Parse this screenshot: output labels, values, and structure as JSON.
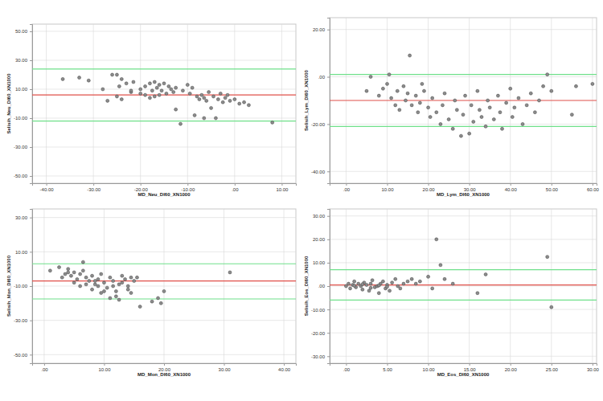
{
  "chart_data": [
    {
      "type": "scatter",
      "x_label": "MD_Neu_DI60_XN1000",
      "y_label": "Selisih_Neu_DI60_XN1000",
      "color": "#8c8c8c",
      "grid": true,
      "xlim": [
        -43,
        13
      ],
      "ylim": [
        -55,
        55
      ],
      "xticks": [
        {
          "value": -40,
          "label": "-40.00"
        },
        {
          "value": -30,
          "label": "-30.00"
        },
        {
          "value": -20,
          "label": "-20.00"
        },
        {
          "value": -10,
          "label": "-10.00"
        },
        {
          "value": 0,
          "label": ".00"
        },
        {
          "value": 10,
          "label": "10.00"
        }
      ],
      "yticks": [
        {
          "value": 50,
          "label": "50.00"
        },
        {
          "value": 30,
          "label": "30.00"
        },
        {
          "value": 10,
          "label": "10.00"
        },
        {
          "value": -10,
          "label": "-10.00"
        },
        {
          "value": -30,
          "label": "-30.00"
        },
        {
          "value": -50,
          "label": "-50.00"
        }
      ],
      "mean_difference": 6,
      "limits_of_agreement": [
        -12,
        24
      ],
      "x": [
        -36.5,
        -33,
        -31,
        -28,
        -26,
        -25,
        -24.5,
        -24,
        -23,
        -22,
        -21.5,
        -27,
        -25,
        -24,
        -20,
        -19,
        -18,
        -17.5,
        -17,
        -16.5,
        -16,
        -15.5,
        -15,
        -14.5,
        -14,
        -13.5,
        -13,
        -12.5,
        -19,
        -18,
        -17,
        -16,
        -11,
        -10,
        -9.5,
        -9,
        -8.5,
        -8,
        -7.5,
        -7,
        -6.5,
        -6,
        -5.5,
        -5,
        -4.5,
        -4,
        -3.5,
        -3,
        -2.5,
        -2,
        -1.5,
        -1,
        0,
        1,
        2,
        3,
        -12.5,
        -11.5,
        -6.5,
        8,
        -20,
        -22
      ],
      "values": [
        17,
        18,
        16,
        10,
        20,
        20,
        12,
        17,
        14,
        8,
        15,
        2,
        5,
        3,
        10,
        12,
        14,
        9,
        15,
        11,
        13,
        9,
        14,
        7,
        12,
        10,
        8,
        11,
        6,
        4,
        5,
        6,
        9,
        13,
        7,
        11,
        -8,
        5,
        3,
        6,
        4,
        2,
        8,
        -3,
        5,
        -10,
        3,
        7,
        1,
        4,
        6,
        2,
        3,
        0,
        1,
        -1,
        -4,
        -14,
        -10,
        -13,
        7,
        9
      ]
    },
    {
      "type": "scatter",
      "x_label": "MD_Lym_DI60_XN1000",
      "y_label": "Selisih_Lym_DI60_XN1000",
      "color": "#8c8c8c",
      "grid": true,
      "xlim": [
        -4,
        61
      ],
      "ylim": [
        -45,
        25
      ],
      "xticks": [
        {
          "value": 0,
          "label": ".00"
        },
        {
          "value": 10,
          "label": "10.00"
        },
        {
          "value": 20,
          "label": "20.00"
        },
        {
          "value": 30,
          "label": "30.00"
        },
        {
          "value": 40,
          "label": "40.00"
        },
        {
          "value": 50,
          "label": "50.00"
        },
        {
          "value": 60,
          "label": "60.00"
        }
      ],
      "yticks": [
        {
          "value": 20,
          "label": "20.00"
        },
        {
          "value": 0,
          "label": ".00"
        },
        {
          "value": -20,
          "label": "-20.00"
        },
        {
          "value": -40,
          "label": "-40.00"
        }
      ],
      "mean_difference": -10,
      "limits_of_agreement": [
        -21,
        1
      ],
      "x": [
        5,
        6,
        8,
        9,
        10,
        10.5,
        11,
        12,
        12.5,
        13,
        14,
        14.5,
        15,
        15.5,
        16,
        17,
        17.5,
        18,
        18.5,
        19,
        20,
        20.5,
        21,
        22,
        23,
        23.5,
        24,
        25,
        26,
        26.5,
        27,
        28,
        28.5,
        29,
        30,
        30.5,
        31,
        32,
        32.5,
        33,
        34,
        34.5,
        35,
        36,
        37,
        37.5,
        38,
        39,
        40,
        40.5,
        41,
        42,
        43,
        44,
        45,
        46,
        47,
        48,
        49,
        50,
        55,
        56,
        60
      ],
      "values": [
        -6,
        0,
        -8,
        -5,
        -3,
        1,
        -9,
        -12,
        -6,
        -14,
        -4,
        -10,
        -7,
        9,
        -12,
        -8,
        -15,
        -11,
        -3,
        -6,
        -13,
        -17,
        -9,
        -15,
        -20,
        -12,
        -7,
        -18,
        -22,
        -10,
        -14,
        -25,
        -16,
        -8,
        -24,
        -12,
        -19,
        -6,
        -14,
        -17,
        -21,
        -10,
        -13,
        -18,
        -8,
        -15,
        -22,
        -11,
        -5,
        -17,
        -13,
        -9,
        -20,
        -12,
        -7,
        -15,
        -10,
        -4,
        1,
        -6,
        -16,
        -4,
        -3
      ]
    },
    {
      "type": "scatter",
      "x_label": "MD_Mon_DI60_XN1000",
      "y_label": "Selisih_Mon_DI60_XN1000",
      "color": "#8c8c8c",
      "grid": true,
      "xlim": [
        -2,
        42
      ],
      "ylim": [
        -55,
        35
      ],
      "xticks": [
        {
          "value": 0,
          "label": ".00"
        },
        {
          "value": 10,
          "label": "10.00"
        },
        {
          "value": 20,
          "label": "20.00"
        },
        {
          "value": 30,
          "label": "30.00"
        },
        {
          "value": 40,
          "label": "40.00"
        }
      ],
      "yticks": [
        {
          "value": 30,
          "label": "30.00"
        },
        {
          "value": 10,
          "label": "10.00"
        },
        {
          "value": -10,
          "label": "-10.00"
        },
        {
          "value": -30,
          "label": "-30.00"
        },
        {
          "value": -50,
          "label": "-50.00"
        }
      ],
      "mean_difference": -7,
      "limits_of_agreement": [
        -17.5,
        3
      ],
      "x": [
        1,
        2.5,
        3.5,
        4,
        4.5,
        5,
        5.5,
        6,
        6.5,
        7,
        7.5,
        8,
        8.5,
        9,
        9.5,
        10,
        10.5,
        11,
        11.5,
        12,
        12.5,
        13,
        13.5,
        14,
        14.5,
        3,
        5,
        6,
        7,
        8,
        9,
        10,
        11,
        12,
        13,
        14,
        15,
        15.5,
        16,
        4,
        6.5,
        8.5,
        9.5,
        11.5,
        12.5,
        14.5,
        19,
        19.5,
        20,
        31,
        18
      ],
      "values": [
        -1,
        1,
        -3,
        0,
        -4,
        -2,
        -6,
        -3,
        4,
        -5,
        -7,
        -4,
        -9,
        -6,
        -3,
        -8,
        -11,
        -5,
        -7,
        -13,
        -9,
        -4,
        -6,
        -10,
        -14,
        -5,
        -8,
        -10,
        -9,
        -12,
        -10,
        -13,
        -17,
        -16,
        -8,
        -12,
        -7,
        -5,
        -22,
        -2,
        -1,
        -7,
        -14,
        -10,
        -18,
        -5,
        -17,
        -20,
        -13,
        -2,
        -19
      ]
    },
    {
      "type": "scatter",
      "x_label": "MD_Eos_DI60_XN1000",
      "y_label": "Selisih_Eos_DI60_XN1000",
      "color": "#8c8c8c",
      "grid": true,
      "xlim": [
        -2,
        30.5
      ],
      "ylim": [
        -33,
        33
      ],
      "xticks": [
        {
          "value": 0,
          "label": ".00"
        },
        {
          "value": 5,
          "label": "5.00"
        },
        {
          "value": 10,
          "label": "10.00"
        },
        {
          "value": 15,
          "label": "15.00"
        },
        {
          "value": 20,
          "label": "20.00"
        },
        {
          "value": 25,
          "label": "25.00"
        },
        {
          "value": 30,
          "label": "30.00"
        }
      ],
      "yticks": [
        {
          "value": 30,
          "label": "30.00"
        },
        {
          "value": 20,
          "label": "20.00"
        },
        {
          "value": 10,
          "label": "10.00"
        },
        {
          "value": 0,
          "label": ".00"
        },
        {
          "value": -10,
          "label": "-10.00"
        },
        {
          "value": -20,
          "label": "-20.00"
        },
        {
          "value": -30,
          "label": "-30.00"
        }
      ],
      "mean_difference": 0.5,
      "limits_of_agreement": [
        -6,
        7
      ],
      "x": [
        0,
        0.3,
        0.5,
        0.8,
        1,
        1.2,
        1.5,
        1.8,
        2,
        2.2,
        2.5,
        2.8,
        3,
        3.2,
        3.5,
        3.8,
        4,
        4.2,
        4.5,
        4.8,
        5,
        5.3,
        5.6,
        6,
        6.3,
        6.6,
        7,
        7.5,
        8,
        8.5,
        9,
        10,
        10.5,
        11,
        11.5,
        12,
        13,
        16,
        17,
        24.5,
        25,
        1,
        2,
        3,
        4,
        5
      ],
      "values": [
        0,
        1,
        -1,
        0.5,
        2,
        -0.5,
        1,
        0,
        -1.5,
        1.5,
        0.5,
        -2,
        1,
        2.5,
        -0.5,
        0,
        -3,
        1,
        2,
        -1,
        0.5,
        -2,
        1.5,
        3,
        0,
        -1,
        1,
        2,
        3,
        1,
        2,
        4,
        -1,
        20,
        9,
        3,
        1,
        -3,
        5,
        12.5,
        -9,
        0.2,
        0.8,
        -0.8,
        0.3,
        -0.3
      ]
    }
  ]
}
